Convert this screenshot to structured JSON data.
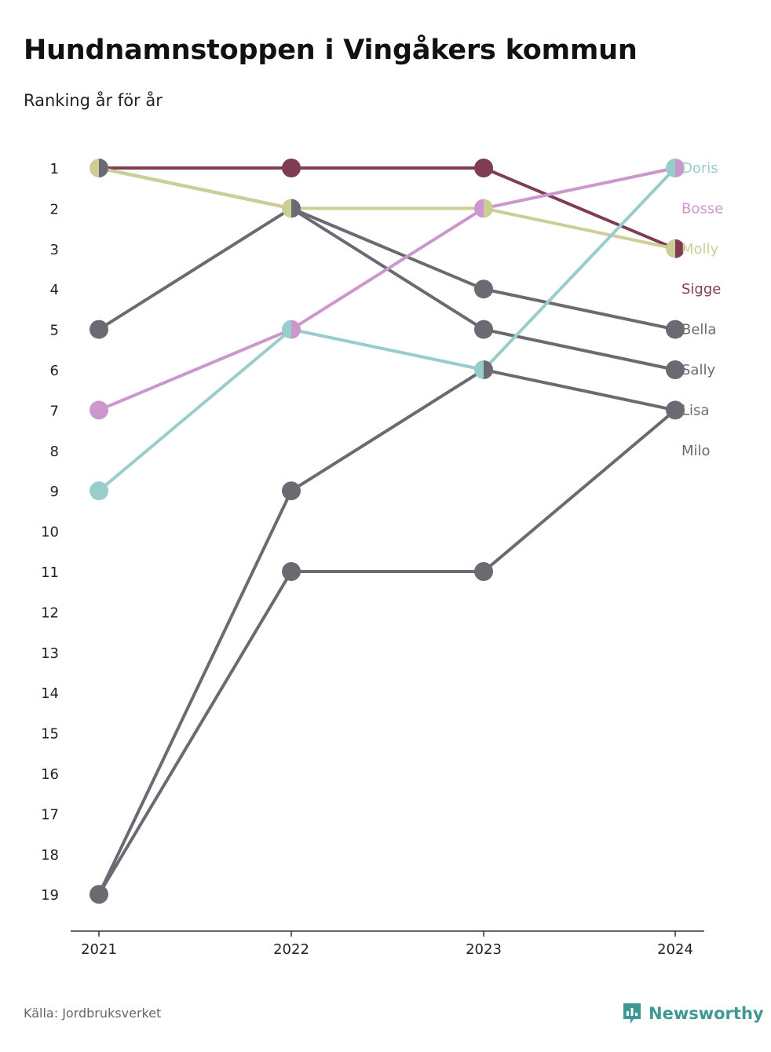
{
  "title": "Hundnamnstoppen i Vingåkers kommun",
  "subtitle": "Ranking år för år",
  "source": "Källa: Jordbruksverket",
  "brand": "Newsworthy",
  "colors": {
    "axis": "#333333",
    "tick_text": "#222222",
    "grey": "#6b6a72"
  },
  "chart_data": {
    "type": "line",
    "x": [
      "2021",
      "2022",
      "2023",
      "2024"
    ],
    "y_ticks": [
      1,
      2,
      3,
      4,
      5,
      6,
      7,
      8,
      9,
      10,
      11,
      12,
      13,
      14,
      15,
      16,
      17,
      18,
      19
    ],
    "ylim": [
      1,
      19
    ],
    "y_inverted": true,
    "grid": false,
    "legend": "right-end labels",
    "series": [
      {
        "name": "Doris",
        "values": [
          9,
          5,
          6,
          1
        ],
        "color": "#97cdcb"
      },
      {
        "name": "Bosse",
        "values": [
          7,
          5,
          2,
          1
        ],
        "color": "#cc97cd"
      },
      {
        "name": "Molly",
        "values": [
          1,
          2,
          2,
          3
        ],
        "color": "#cdcd97"
      },
      {
        "name": "Sigge",
        "values": [
          1,
          1,
          1,
          3
        ],
        "color": "#7f3d53"
      },
      {
        "name": "Bella",
        "values": [
          5,
          2,
          4,
          5
        ],
        "color": "#6b6a72"
      },
      {
        "name": "Sally",
        "values": [
          1,
          2,
          5,
          6
        ],
        "color": "#6b6a72"
      },
      {
        "name": "Lisa",
        "values": [
          19,
          9,
          6,
          7
        ],
        "color": "#6b6a72"
      },
      {
        "name": "Milo",
        "values": [
          19,
          11,
          11,
          7
        ],
        "color": "#6b6a72"
      }
    ]
  }
}
